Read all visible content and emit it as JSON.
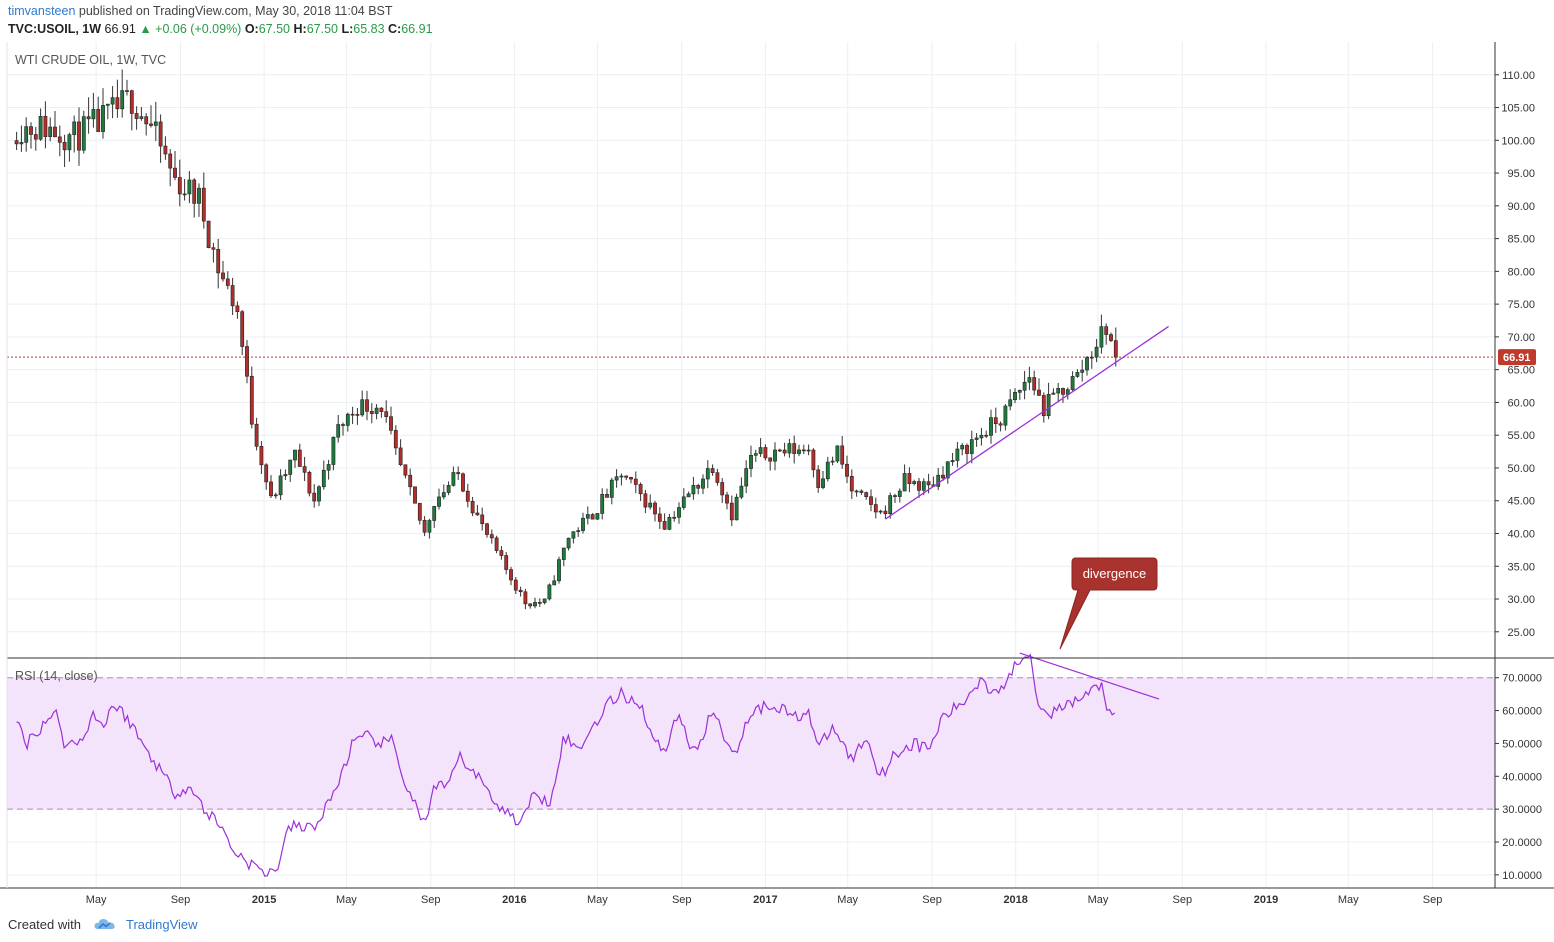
{
  "header": {
    "user": "timvansteen",
    "published": "published on TradingView.com, May 30, 2018 11:04 BST",
    "symbol": "TVC:USOIL, 1W",
    "price": "66.91",
    "change": "+0.06 (+0.09%)",
    "ohlc": {
      "o_label": "O:",
      "o": "67.50",
      "h_label": "H:",
      "h": "67.50",
      "l_label": "L:",
      "l": "65.83",
      "c_label": "C:",
      "c": "66.91"
    }
  },
  "footer": {
    "created_with": "Created with",
    "brand": "TradingView"
  },
  "chart_data": {
    "type": "candlestick",
    "title": "WTI CRUDE OIL, 1W, TVC",
    "interval": "1W",
    "x_ticks": [
      "May",
      "Sep",
      "2015",
      "May",
      "Sep",
      "2016",
      "May",
      "Sep",
      "2017",
      "May",
      "Sep",
      "2018",
      "May",
      "Sep",
      "2019",
      "May",
      "Sep"
    ],
    "price_axis": {
      "ticks": [
        "110.00",
        "105.00",
        "100.00",
        "95.00",
        "90.00",
        "85.00",
        "80.00",
        "75.00",
        "70.00",
        "65.00",
        "60.00",
        "55.00",
        "50.00",
        "45.00",
        "40.00",
        "35.00",
        "30.00",
        "25.00"
      ],
      "ylim": [
        21,
        115
      ],
      "grid": true
    },
    "last_price": {
      "value": 66.91,
      "label": "66.91",
      "color": "#c0392b"
    },
    "close_anchors": [
      [
        "2014-01-05",
        102
      ],
      [
        "2014-02-16",
        102
      ],
      [
        "2014-03-30",
        100.5
      ],
      [
        "2014-05-11",
        103
      ],
      [
        "2014-06-22",
        106.5
      ],
      [
        "2014-07-20",
        102
      ],
      [
        "2014-08-24",
        94
      ],
      [
        "2014-09-28",
        91
      ],
      [
        "2014-10-26",
        80.5
      ],
      [
        "2014-11-23",
        74
      ],
      [
        "2014-12-14",
        57.5
      ],
      [
        "2015-01-11",
        45
      ],
      [
        "2015-02-15",
        52
      ],
      [
        "2015-03-15",
        45
      ],
      [
        "2015-04-19",
        56
      ],
      [
        "2015-05-17",
        59.5
      ],
      [
        "2015-06-21",
        59.5
      ],
      [
        "2015-07-12",
        52
      ],
      [
        "2015-08-23",
        40
      ],
      [
        "2015-09-06",
        45
      ],
      [
        "2015-10-11",
        49
      ],
      [
        "2015-11-15",
        41
      ],
      [
        "2015-12-20",
        34.5
      ],
      [
        "2016-01-17",
        29.5
      ],
      [
        "2016-02-14",
        29.5
      ],
      [
        "2016-03-20",
        39.5
      ],
      [
        "2016-04-24",
        43
      ],
      [
        "2016-06-05",
        49
      ],
      [
        "2016-07-10",
        45
      ],
      [
        "2016-08-07",
        41.5
      ],
      [
        "2016-09-04",
        45
      ],
      [
        "2016-10-16",
        50.5
      ],
      [
        "2016-11-13",
        43
      ],
      [
        "2016-12-11",
        51.5
      ],
      [
        "2017-01-15",
        52.5
      ],
      [
        "2017-03-05",
        53
      ],
      [
        "2017-03-19",
        48
      ],
      [
        "2017-04-16",
        52.5
      ],
      [
        "2017-05-07",
        46.5
      ],
      [
        "2017-06-18",
        43
      ],
      [
        "2017-07-23",
        48
      ],
      [
        "2017-08-27",
        47
      ],
      [
        "2017-09-24",
        50.5
      ],
      [
        "2017-10-29",
        54
      ],
      [
        "2017-12-10",
        57.5
      ],
      [
        "2018-01-21",
        64
      ],
      [
        "2018-02-11",
        59
      ],
      [
        "2018-03-04",
        61.5
      ],
      [
        "2018-04-01",
        64
      ],
      [
        "2018-04-22",
        68
      ],
      [
        "2018-05-13",
        71.5
      ],
      [
        "2018-05-27",
        66.91
      ]
    ],
    "trendline_price": {
      "from": [
        "2017-06-25",
        42.2
      ],
      "to": [
        "2018-08-12",
        71.6
      ],
      "color": "#9b30d9"
    },
    "annotation": {
      "text": "divergence",
      "color": "#a8322d"
    },
    "rsi": {
      "label": "RSI (14, close)",
      "ticks": [
        "70.0000",
        "60.0000",
        "50.0000",
        "40.0000",
        "30.0000",
        "20.0000",
        "10.0000"
      ],
      "ylim": [
        6,
        76
      ],
      "band": [
        30,
        70
      ],
      "band_color": "#f3e3fb",
      "line_color": "#9b30d9",
      "anchors": [
        [
          "2014-01-05",
          57
        ],
        [
          "2014-01-19",
          50
        ],
        [
          "2014-02-09",
          55
        ],
        [
          "2014-03-02",
          60
        ],
        [
          "2014-03-16",
          50
        ],
        [
          "2014-04-06",
          50
        ],
        [
          "2014-04-27",
          59
        ],
        [
          "2014-05-11",
          55
        ],
        [
          "2014-05-25",
          62
        ],
        [
          "2014-06-15",
          58
        ],
        [
          "2014-07-13",
          48
        ],
        [
          "2014-08-03",
          42
        ],
        [
          "2014-08-24",
          35
        ],
        [
          "2014-09-14",
          37
        ],
        [
          "2014-10-05",
          30
        ],
        [
          "2014-10-26",
          26
        ],
        [
          "2014-11-16",
          18
        ],
        [
          "2014-12-07",
          14
        ],
        [
          "2014-12-28",
          11
        ],
        [
          "2015-01-18",
          11
        ],
        [
          "2015-02-08",
          25
        ],
        [
          "2015-03-01",
          24
        ],
        [
          "2015-03-22",
          26
        ],
        [
          "2015-04-19",
          38
        ],
        [
          "2015-05-10",
          50
        ],
        [
          "2015-05-31",
          52
        ],
        [
          "2015-06-21",
          50
        ],
        [
          "2015-07-05",
          51
        ],
        [
          "2015-07-26",
          38
        ],
        [
          "2015-08-23",
          25
        ],
        [
          "2015-09-06",
          36
        ],
        [
          "2015-09-27",
          37
        ],
        [
          "2015-10-11",
          46
        ],
        [
          "2015-11-01",
          42
        ],
        [
          "2015-11-22",
          36
        ],
        [
          "2015-12-13",
          30
        ],
        [
          "2016-01-10",
          26
        ],
        [
          "2016-01-31",
          35
        ],
        [
          "2016-02-21",
          32
        ],
        [
          "2016-03-13",
          52
        ],
        [
          "2016-04-03",
          48
        ],
        [
          "2016-04-24",
          55
        ],
        [
          "2016-05-15",
          62
        ],
        [
          "2016-06-05",
          65
        ],
        [
          "2016-07-03",
          62
        ],
        [
          "2016-07-24",
          50
        ],
        [
          "2016-08-07",
          48
        ],
        [
          "2016-08-28",
          60
        ],
        [
          "2016-09-18",
          46
        ],
        [
          "2016-10-16",
          60
        ],
        [
          "2016-11-06",
          50
        ],
        [
          "2016-11-20",
          48
        ],
        [
          "2016-12-11",
          60
        ],
        [
          "2017-01-15",
          62
        ],
        [
          "2017-02-12",
          58
        ],
        [
          "2017-03-05",
          60
        ],
        [
          "2017-03-19",
          48
        ],
        [
          "2017-04-09",
          55
        ],
        [
          "2017-05-07",
          45
        ],
        [
          "2017-05-28",
          52
        ],
        [
          "2017-06-18",
          40
        ],
        [
          "2017-07-09",
          47
        ],
        [
          "2017-08-06",
          50
        ],
        [
          "2017-08-27",
          48
        ],
        [
          "2017-09-17",
          58
        ],
        [
          "2017-10-15",
          62
        ],
        [
          "2017-11-12",
          70
        ],
        [
          "2017-11-26",
          66
        ],
        [
          "2017-12-17",
          68
        ],
        [
          "2018-01-07",
          76
        ],
        [
          "2018-01-21",
          78
        ],
        [
          "2018-02-04",
          62
        ],
        [
          "2018-02-25",
          59
        ],
        [
          "2018-03-11",
          61
        ],
        [
          "2018-04-01",
          63
        ],
        [
          "2018-04-22",
          66
        ],
        [
          "2018-05-06",
          68
        ],
        [
          "2018-05-20",
          57
        ],
        [
          "2018-05-27",
          58
        ]
      ],
      "divergence_line": {
        "from": [
          "2018-01-07",
          77.5
        ],
        "to": [
          "2018-07-29",
          63.5
        ]
      }
    }
  }
}
